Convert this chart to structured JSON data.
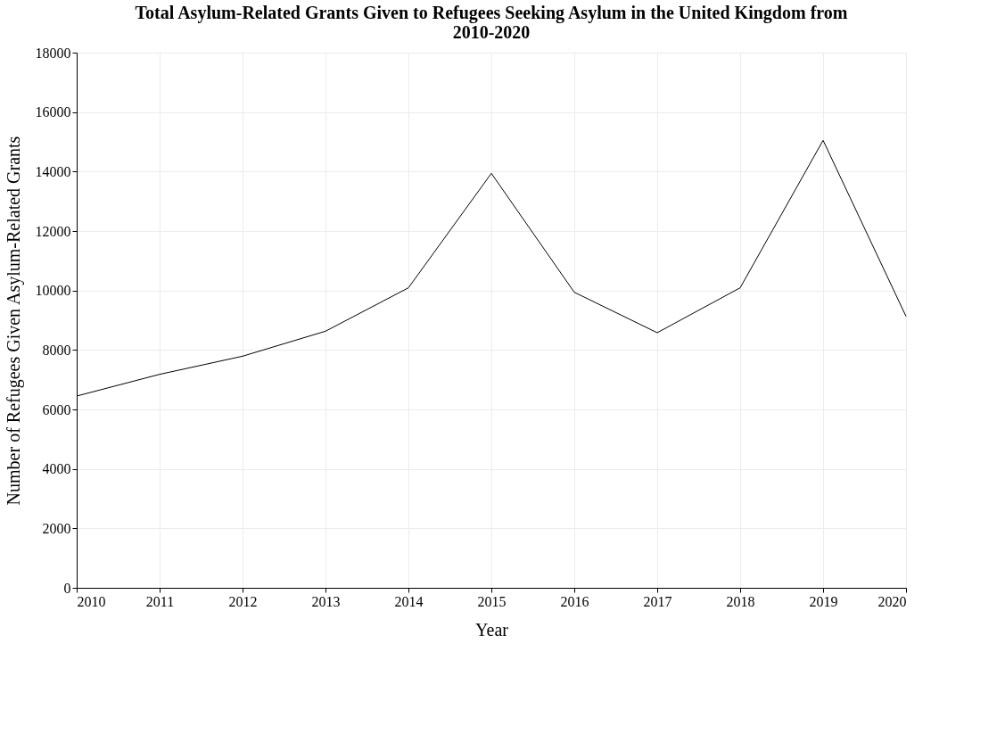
{
  "chart_data": {
    "type": "line",
    "title": "Total Asylum-Related Grants Given to Refugees Seeking Asylum in the United Kingdom from 2010-2020",
    "xlabel": "Year",
    "ylabel": "Number of Refugees Given Asylum-Related Grants",
    "x": [
      2010,
      2011,
      2012,
      2013,
      2014,
      2015,
      2016,
      2017,
      2018,
      2019,
      2020
    ],
    "series": [
      {
        "color": "#000000",
        "values": [
          6450,
          7180,
          7790,
          8630,
          10090,
          13940,
          9940,
          8580,
          10090,
          15050,
          9130
        ]
      }
    ],
    "xlim": [
      2010,
      2020
    ],
    "xticks": [
      2010,
      2011,
      2012,
      2013,
      2014,
      2015,
      2016,
      2017,
      2018,
      2019,
      2020
    ],
    "ylim": [
      0,
      18000
    ],
    "yticks": [
      0,
      2000,
      4000,
      6000,
      8000,
      10000,
      12000,
      14000,
      16000,
      18000
    ],
    "grid": true,
    "marker": "none",
    "line_style": "solid"
  }
}
